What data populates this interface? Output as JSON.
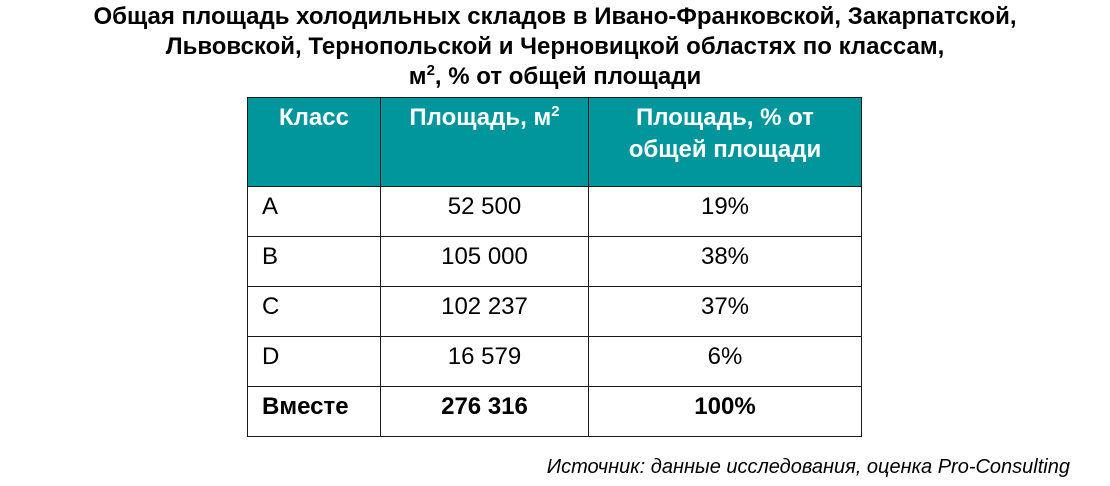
{
  "title": {
    "line1": "Общая площадь холодильных складов в Ивано-Франковской, Закарпатской,",
    "line2": "Львовской, Тернопольской и Черновицкой областях по классам,",
    "line3_pre": "м",
    "line3_sup": "2",
    "line3_post": ", % от общей площади"
  },
  "table": {
    "headers": {
      "class": "Класс",
      "area_pre": "Площадь, м",
      "area_sup": "2",
      "share": "Площадь, % от общей площади"
    },
    "rows": [
      {
        "class": "A",
        "area": "52 500",
        "share": "19%"
      },
      {
        "class": "B",
        "area": "105 000",
        "share": "38%"
      },
      {
        "class": "C",
        "area": "102 237",
        "share": "37%"
      },
      {
        "class": "D",
        "area": "16 579",
        "share": "6%"
      }
    ],
    "total": {
      "class": "Вместе",
      "area": "276 316",
      "share": "100%"
    }
  },
  "source": "Источник: данные исследования, оценка Pro-Consulting",
  "colors": {
    "header_bg": "#00969c",
    "header_text": "#ffffff",
    "border": "#1a1a1a"
  },
  "chart_data": {
    "type": "table",
    "title": "Общая площадь холодильных складов в Ивано-Франковской, Закарпатской, Львовской, Тернопольской и Черновицкой областях по классам, м2, % от общей площади",
    "columns": [
      "Класс",
      "Площадь, м2",
      "Площадь, % от общей площади"
    ],
    "rows": [
      [
        "A",
        52500,
        19
      ],
      [
        "B",
        105000,
        38
      ],
      [
        "C",
        102237,
        37
      ],
      [
        "D",
        16579,
        6
      ],
      [
        "Вместе",
        276316,
        100
      ]
    ]
  }
}
